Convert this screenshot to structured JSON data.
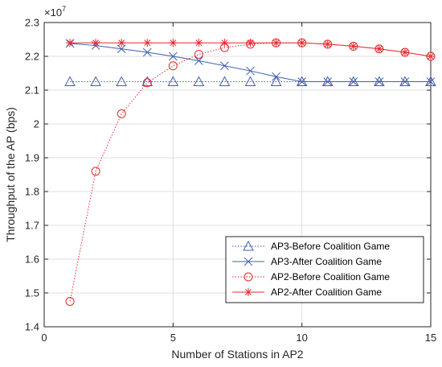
{
  "chart_data": {
    "type": "line",
    "title": "",
    "xlabel": "Number of Stations in AP2",
    "ylabel": "Throughput of the AP (bps)",
    "y_exponent_label": "×10",
    "y_exponent_power": "7",
    "xlim": [
      0,
      15
    ],
    "ylim": [
      1.4,
      2.3
    ],
    "x_ticks": [
      0,
      5,
      10,
      15
    ],
    "y_ticks": [
      1.4,
      1.5,
      1.6,
      1.7,
      1.8,
      1.9,
      2.0,
      2.1,
      2.2,
      2.3
    ],
    "x_tick_labels": [
      "0",
      "5",
      "10",
      "15"
    ],
    "y_tick_labels": [
      "1.4",
      "1.5",
      "1.6",
      "1.7",
      "1.8",
      "1.9",
      "2",
      "2.1",
      "2.2",
      "2.3"
    ],
    "grid": true,
    "legend_position": "bottom-right",
    "x": [
      1,
      2,
      3,
      4,
      5,
      6,
      7,
      8,
      9,
      10,
      11,
      12,
      13,
      14,
      15
    ],
    "series": [
      {
        "name": "AP3-Before Coalition Game",
        "color": "#3f5fb0",
        "line_style": "dotted",
        "marker": "triangle",
        "values": [
          2.125,
          2.125,
          2.125,
          2.125,
          2.125,
          2.125,
          2.125,
          2.125,
          2.125,
          2.125,
          2.125,
          2.125,
          2.125,
          2.125,
          2.125
        ]
      },
      {
        "name": "AP3-After Coalition Game",
        "color": "#3f5fb0",
        "line_style": "solid",
        "marker": "x",
        "values": [
          2.238,
          2.232,
          2.222,
          2.212,
          2.2,
          2.187,
          2.172,
          2.157,
          2.14,
          2.125,
          2.125,
          2.125,
          2.125,
          2.125,
          2.125
        ]
      },
      {
        "name": "AP2-Before Coalition Game",
        "color": "#e8282c",
        "line_style": "dotted",
        "marker": "circle",
        "values": [
          1.475,
          1.86,
          2.03,
          2.122,
          2.172,
          2.206,
          2.226,
          2.236,
          2.24,
          2.24,
          2.236,
          2.23,
          2.222,
          2.212,
          2.2
        ]
      },
      {
        "name": "AP2-After Coalition Game",
        "color": "#e8282c",
        "line_style": "solid",
        "marker": "asterisk",
        "values": [
          2.24,
          2.24,
          2.24,
          2.24,
          2.24,
          2.24,
          2.24,
          2.24,
          2.24,
          2.24,
          2.236,
          2.23,
          2.222,
          2.212,
          2.2
        ]
      }
    ]
  }
}
